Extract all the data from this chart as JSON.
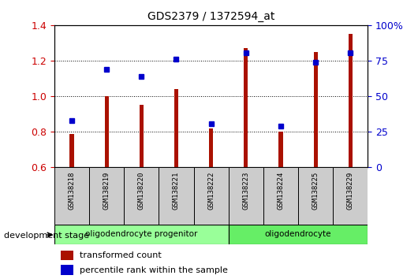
{
  "title": "GDS2379 / 1372594_at",
  "categories": [
    "GSM138218",
    "GSM138219",
    "GSM138220",
    "GSM138221",
    "GSM138222",
    "GSM138223",
    "GSM138224",
    "GSM138225",
    "GSM138229"
  ],
  "bar_values": [
    0.79,
    1.0,
    0.95,
    1.04,
    0.82,
    1.27,
    0.8,
    1.25,
    1.35
  ],
  "dot_values": [
    0.865,
    1.15,
    1.11,
    1.21,
    0.845,
    1.245,
    0.83,
    1.19,
    1.245
  ],
  "ylim": [
    0.6,
    1.4
  ],
  "ybase": 0.6,
  "y_ticks": [
    0.6,
    0.8,
    1.0,
    1.2,
    1.4
  ],
  "y2_ticks": [
    0,
    25,
    50,
    75,
    100
  ],
  "bar_color": "#aa1100",
  "dot_color": "#0000cc",
  "title_color": "#000000",
  "bg_color": "#ffffff",
  "group1_label": "oligodendrocyte progenitor",
  "group2_label": "oligodendrocyte",
  "group1_indices": [
    0,
    1,
    2,
    3,
    4
  ],
  "group2_indices": [
    5,
    6,
    7,
    8
  ],
  "group1_color": "#99ff99",
  "group2_color": "#66ee66",
  "xlabel_text": "development stage",
  "legend_bar_label": "transformed count",
  "legend_dot_label": "percentile rank within the sample",
  "tick_label_color_left": "#cc0000",
  "tick_label_color_right": "#0000cc",
  "bar_width": 0.12
}
